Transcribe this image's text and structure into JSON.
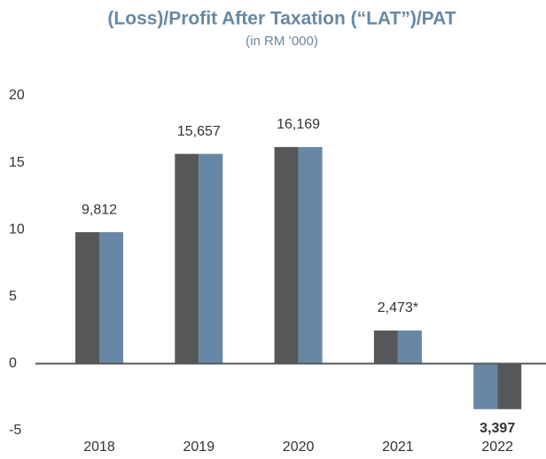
{
  "chart_data": {
    "type": "bar",
    "title": "(Loss)/Profit After Taxation (“LAT”)/PAT",
    "subtitle": "(in RM ’000)",
    "categories": [
      "2018",
      "2019",
      "2020",
      "2021",
      "2022"
    ],
    "series": [
      {
        "colors": [
          "#555759",
          "#555759",
          "#555759",
          "#555759",
          "#6788a5"
        ],
        "values": [
          9.812,
          15.657,
          16.169,
          2.473,
          -3.397
        ],
        "value_labels": [
          "9,812",
          "15,657",
          "16,169",
          "2,473*",
          "3,397"
        ]
      },
      {
        "colors": [
          "#6788a5",
          "#6788a5",
          "#6788a5",
          "#6788a5",
          "#555759"
        ],
        "values": [
          9.812,
          15.657,
          16.169,
          2.473,
          -3.397
        ]
      }
    ],
    "ylim": [
      -5,
      20
    ],
    "yticks": [
      -5,
      0,
      5,
      10,
      15,
      20
    ],
    "grid": false
  }
}
